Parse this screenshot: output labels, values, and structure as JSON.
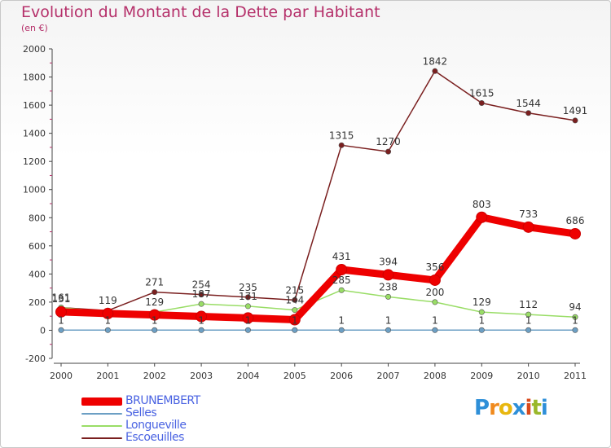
{
  "title": "Evolution du Montant de la Dette par Habitant",
  "subtitle": "(en €)",
  "colors": {
    "title": "#b5306a",
    "axis_text": "#333333",
    "grid": "#d9d9d9",
    "legend_text": "#4a63e2"
  },
  "logo": {
    "letters": [
      "P",
      "r",
      "o",
      "x",
      "i",
      "t",
      "i"
    ],
    "colors": [
      "#2e8fd8",
      "#f08a1d",
      "#e8b70f",
      "#2e8fd8",
      "#d94a1c",
      "#9ab82a",
      "#2e8fd8"
    ]
  },
  "chart_data": {
    "type": "line",
    "categories": [
      "2000",
      "2001",
      "2002",
      "2003",
      "2004",
      "2005",
      "2006",
      "2007",
      "2008",
      "2009",
      "2010",
      "2011"
    ],
    "ylim": [
      -200,
      2000
    ],
    "yticks": [
      "-200",
      "0",
      "200",
      "400",
      "600",
      "800",
      "1000",
      "1200",
      "1400",
      "1600",
      "1800",
      "2000"
    ],
    "grid": false,
    "legend_position": "bottom-left",
    "series": [
      {
        "name": "BRUNEMBERT",
        "color": "#ee0000",
        "width": 9,
        "values": [
          131,
          119,
          109,
          98,
          87,
          75,
          431,
          394,
          356,
          803,
          733,
          686
        ],
        "labels": [
          "131",
          "119",
          "",
          "",
          "",
          "",
          "431",
          "394",
          "356",
          "803",
          "733",
          "686"
        ]
      },
      {
        "name": "Selles",
        "color": "#6c9fc4",
        "width": 1.5,
        "values": [
          1,
          1,
          1,
          1,
          1,
          1,
          1,
          1,
          1,
          1,
          1,
          1
        ],
        "labels": [
          "1",
          "1",
          "1",
          "1",
          "1",
          "1",
          "1",
          "1",
          "1",
          "1",
          "1",
          "1"
        ]
      },
      {
        "name": "Longueville",
        "color": "#99dd66",
        "width": 1.5,
        "values": [
          161,
          129,
          129,
          187,
          171,
          144,
          285,
          238,
          200,
          129,
          112,
          94
        ],
        "labels": [
          "",
          "",
          "129",
          "187",
          "171",
          "144",
          "285",
          "238",
          "200",
          "129",
          "112",
          "94"
        ]
      },
      {
        "name": "Escoeuilles",
        "color": "#7a1f1f",
        "width": 1.5,
        "values": [
          161,
          140,
          271,
          254,
          235,
          215,
          1315,
          1270,
          1842,
          1615,
          1544,
          1491
        ],
        "labels": [
          "161",
          "",
          "271",
          "254",
          "235",
          "215",
          "1315",
          "1270",
          "1842",
          "1615",
          "1544",
          "1491"
        ]
      }
    ]
  }
}
